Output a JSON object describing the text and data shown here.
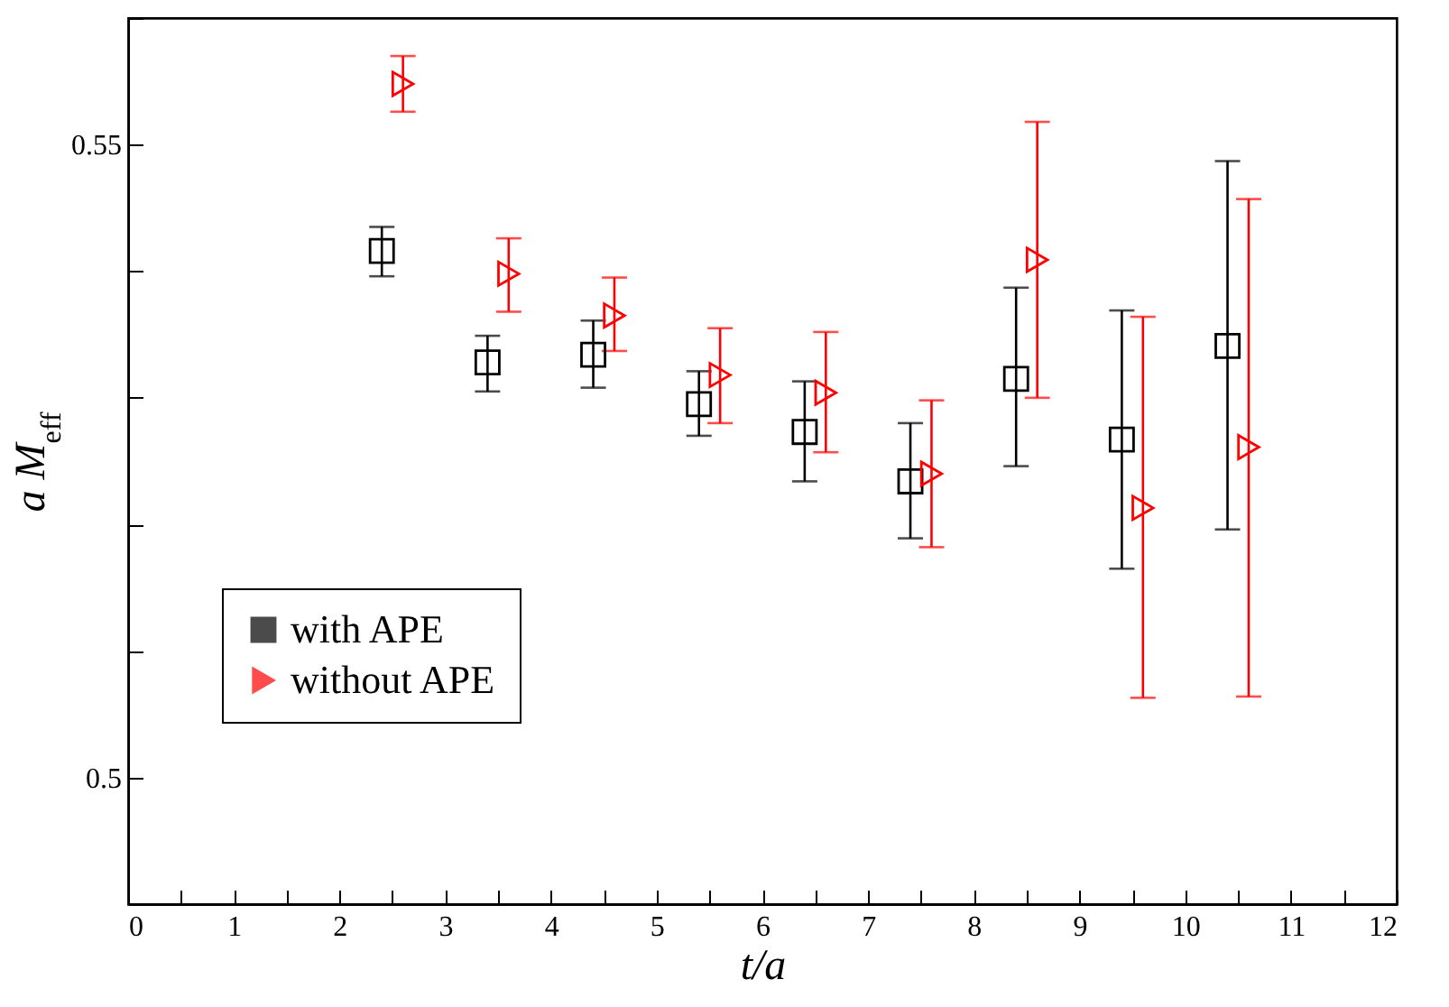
{
  "chart_data": {
    "type": "scatter",
    "xlabel": "t/a",
    "ylabel": "a M$_{eff}$",
    "xlim": [
      0,
      12
    ],
    "ylim": [
      0.49,
      0.56
    ],
    "xticks": [
      0,
      {
        "value": 0.5,
        "label": null
      },
      1,
      {
        "value": 1.5,
        "label": null
      },
      2,
      {
        "value": 2.5,
        "label": null
      },
      3,
      {
        "value": 3.5,
        "label": null
      },
      4,
      {
        "value": 4.5,
        "label": null
      },
      5,
      {
        "value": 5.5,
        "label": null
      },
      6,
      {
        "value": 6.5,
        "label": null
      },
      7,
      {
        "value": 7.5,
        "label": null
      },
      8,
      {
        "value": 8.5,
        "label": null
      },
      9,
      {
        "value": 9.5,
        "label": null
      },
      10,
      {
        "value": 10.5,
        "label": null
      },
      11,
      {
        "value": 11.5,
        "label": null
      },
      12
    ],
    "yticks": [
      {
        "value": 0.49,
        "label": null
      },
      0.5,
      {
        "value": 0.51,
        "label": null
      },
      {
        "value": 0.52,
        "label": null
      },
      {
        "value": 0.53,
        "label": null
      },
      {
        "value": 0.54,
        "label": null
      },
      0.55,
      {
        "value": 0.56,
        "label": null
      }
    ],
    "grid": false,
    "legend": "bottom left",
    "series": [
      {
        "name": "with APE",
        "color": "#000000",
        "marker": "square",
        "x": [
          2.4,
          3.4,
          4.4,
          5.4,
          6.4,
          7.4,
          8.4,
          9.4,
          10.4
        ],
        "values": [
          0.5416,
          0.5328,
          0.5334,
          0.5295,
          0.5273,
          0.5234,
          0.5315,
          0.5267,
          0.5341
        ],
        "errors": [
          [
            0.5396,
            0.5435
          ],
          [
            0.5305,
            0.5349
          ],
          [
            0.5308,
            0.5361
          ],
          [
            0.527,
            0.5321
          ],
          [
            0.5234,
            0.5313
          ],
          [
            0.5189,
            0.528
          ],
          [
            0.5246,
            0.5387
          ],
          [
            0.5165,
            0.5369
          ],
          [
            0.5196,
            0.5487
          ]
        ]
      },
      {
        "name": "without APE",
        "color": "#ff0000",
        "marker": "triangle",
        "x": [
          2.6,
          3.6,
          4.6,
          5.6,
          6.6,
          7.6,
          8.6,
          9.6,
          10.6
        ],
        "values": [
          0.5548,
          0.5398,
          0.5365,
          0.5318,
          0.5304,
          0.524,
          0.5409,
          0.5213,
          0.5261
        ],
        "errors": [
          [
            0.5526,
            0.557
          ],
          [
            0.5368,
            0.5426
          ],
          [
            0.5337,
            0.5395
          ],
          [
            0.528,
            0.5355
          ],
          [
            0.5257,
            0.5352
          ],
          [
            0.5182,
            0.5298
          ],
          [
            0.53,
            0.5518
          ],
          [
            0.5063,
            0.5364
          ],
          [
            0.5064,
            0.5457
          ]
        ]
      }
    ]
  }
}
